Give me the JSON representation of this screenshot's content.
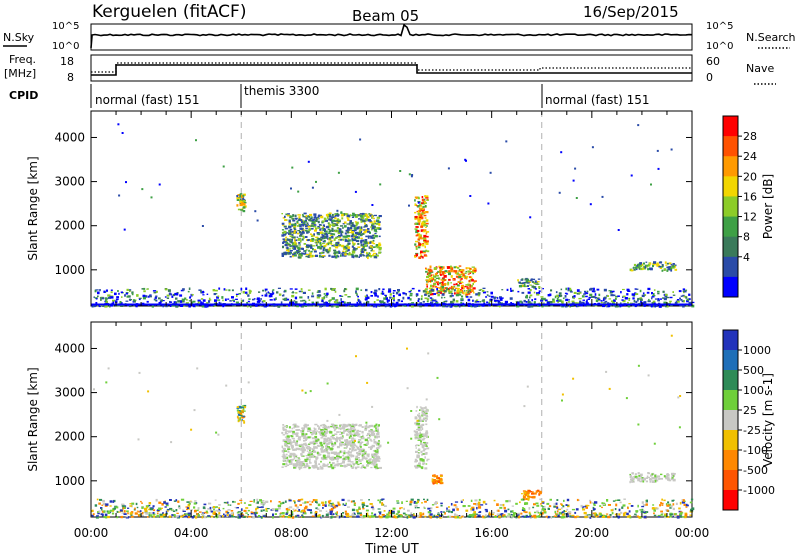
{
  "header": {
    "station": "Kerguelen (fitACF)",
    "beam": "Beam 05",
    "date": "16/Sep/2015"
  },
  "top_panels": {
    "nsky_label": "N.Sky",
    "nsearch_label": "N.Search",
    "nsky_ticks": [
      "10^5",
      "10^0"
    ],
    "nsearch_ticks": [
      "10^5",
      "10^0"
    ],
    "freq_label": "Freq.",
    "freq_unit": "[MHz]",
    "freq_ticks": [
      "18",
      "8"
    ],
    "nave_label": "Nave",
    "nave_ticks": [
      "60",
      "0"
    ],
    "cpid_label": "CPID",
    "modes": [
      {
        "label": "normal (fast) 151",
        "start": 0,
        "end": 6
      },
      {
        "label": "themis 3300",
        "start": 6,
        "end": 18
      },
      {
        "label": "normal (fast) 151",
        "start": 18,
        "end": 24
      }
    ]
  },
  "x_axis": {
    "title": "Time UT",
    "ticks": [
      "00:00",
      "04:00",
      "08:00",
      "12:00",
      "16:00",
      "20:00",
      "00:00"
    ]
  },
  "chart_data": [
    {
      "type": "heatmap",
      "parameter": "Power",
      "ylabel": "Slant Range [km]",
      "xlim": [
        0,
        24
      ],
      "ylim": [
        180,
        4600
      ],
      "yticks": [
        "1000",
        "2000",
        "3000",
        "4000"
      ],
      "colorbar": {
        "label": "Power [dB]",
        "ticks": [
          "28",
          "24",
          "20",
          "16",
          "12",
          "8",
          "4"
        ],
        "colors": [
          "#0000ff",
          "#2a4ba8",
          "#3a7a5a",
          "#3ea045",
          "#8ccc28",
          "#f2d600",
          "#ff9a00",
          "#ff5200",
          "#ff0000"
        ]
      },
      "regions": [
        {
          "t": [
            5.8,
            6.1
          ],
          "r": [
            2350,
            2750
          ],
          "v": "mid-high"
        },
        {
          "t": [
            7.6,
            11.5
          ],
          "r": [
            1300,
            2300
          ],
          "v": "mid"
        },
        {
          "t": [
            12.9,
            13.4
          ],
          "r": [
            1300,
            2700
          ],
          "v": "high"
        },
        {
          "t": [
            13.3,
            15.3
          ],
          "r": [
            450,
            1100
          ],
          "v": "high"
        },
        {
          "t": [
            17.0,
            17.9
          ],
          "r": [
            620,
            830
          ],
          "v": "mid"
        },
        {
          "t": [
            21.5,
            23.3
          ],
          "r": [
            1000,
            1200
          ],
          "v": "mid"
        },
        {
          "t": [
            0,
            24
          ],
          "r": [
            200,
            600
          ],
          "v": "low"
        }
      ]
    },
    {
      "type": "heatmap",
      "parameter": "Velocity",
      "ylabel": "Slant Range [km]",
      "xlim": [
        0,
        24
      ],
      "ylim": [
        180,
        4600
      ],
      "yticks": [
        "1000",
        "2000",
        "3000",
        "4000"
      ],
      "colorbar": {
        "label": "Velocity [m s-1]",
        "ticks": [
          "1000",
          "500",
          "100",
          "25",
          "-25",
          "-100",
          "-500",
          "-1000"
        ],
        "colors": [
          "#2233bb",
          "#1f6fb8",
          "#2e8b57",
          "#6fcf3a",
          "#c8c8c4",
          "#f0c000",
          "#ff8800",
          "#ff5500",
          "#ff0000"
        ]
      },
      "regions": [
        {
          "t": [
            5.8,
            6.1
          ],
          "r": [
            2350,
            2750
          ],
          "v": "positive"
        },
        {
          "t": [
            7.6,
            11.5
          ],
          "r": [
            1300,
            2300
          ],
          "v": "near-zero"
        },
        {
          "t": [
            12.9,
            13.4
          ],
          "r": [
            1300,
            2700
          ],
          "v": "near-zero"
        },
        {
          "t": [
            13.6,
            14.0
          ],
          "r": [
            950,
            1150
          ],
          "v": "negative"
        },
        {
          "t": [
            17.1,
            17.9
          ],
          "r": [
            600,
            800
          ],
          "v": "negative"
        },
        {
          "t": [
            21.5,
            23.3
          ],
          "r": [
            1000,
            1200
          ],
          "v": "near-zero"
        },
        {
          "t": [
            0,
            24
          ],
          "r": [
            200,
            600
          ],
          "v": "mixed"
        }
      ]
    }
  ]
}
